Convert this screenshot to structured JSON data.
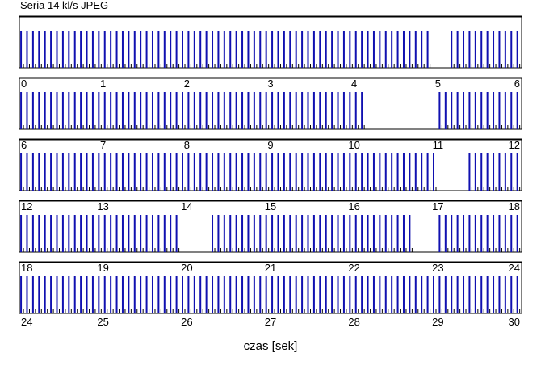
{
  "title": "Seria 14 kl/s JPEG",
  "xlabel": "czas [sek]",
  "chart_data": {
    "type": "bar",
    "title": "Seria 14 kl/s JPEG",
    "xlabel": "czas [sek]",
    "ylabel": "",
    "rows": [
      {
        "xlim": [
          0,
          6
        ],
        "tick_labels": [
          "0",
          "1",
          "2",
          "3",
          "4",
          "5",
          "6"
        ]
      },
      {
        "xlim": [
          6,
          12
        ],
        "tick_labels": [
          "6",
          "7",
          "8",
          "9",
          "10",
          "11",
          "12"
        ]
      },
      {
        "xlim": [
          12,
          18
        ],
        "tick_labels": [
          "12",
          "13",
          "14",
          "15",
          "16",
          "17",
          "18"
        ]
      },
      {
        "xlim": [
          18,
          24
        ],
        "tick_labels": [
          "18",
          "19",
          "20",
          "21",
          "22",
          "23",
          "24"
        ]
      },
      {
        "xlim": [
          24,
          30
        ],
        "tick_labels": [
          "24",
          "25",
          "26",
          "27",
          "28",
          "29",
          "30"
        ]
      }
    ],
    "frame_rate_per_s": 14,
    "gaps_s": [
      [
        4.93,
        5.13
      ],
      [
        10.12,
        11.0
      ],
      [
        16.95,
        17.35
      ],
      [
        19.88,
        20.25
      ],
      [
        22.7,
        22.95
      ]
    ],
    "bar_color": "#1010b0",
    "tick_mark_color": "#000000"
  }
}
